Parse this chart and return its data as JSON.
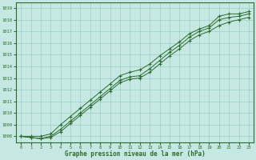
{
  "x": [
    0,
    1,
    2,
    3,
    4,
    5,
    6,
    7,
    8,
    9,
    10,
    11,
    12,
    13,
    14,
    15,
    16,
    17,
    18,
    19,
    20,
    21,
    22,
    23
  ],
  "line_top": [
    1008.0,
    1008.0,
    1008.0,
    1008.2,
    1009.0,
    1009.7,
    1010.4,
    1011.1,
    1011.8,
    1012.5,
    1013.2,
    1013.5,
    1013.7,
    1014.2,
    1014.9,
    1015.5,
    1016.1,
    1016.8,
    1017.2,
    1017.5,
    1018.3,
    1018.5,
    1018.5,
    1018.7
  ],
  "line_mid": [
    1008.0,
    1007.9,
    1007.8,
    1008.0,
    1008.6,
    1009.3,
    1010.0,
    1010.7,
    1011.4,
    1012.1,
    1012.8,
    1013.1,
    1013.2,
    1013.8,
    1014.5,
    1015.2,
    1015.8,
    1016.5,
    1017.0,
    1017.3,
    1018.0,
    1018.2,
    1018.3,
    1018.5
  ],
  "line_bot": [
    1008.0,
    1007.9,
    1007.8,
    1007.9,
    1008.4,
    1009.1,
    1009.8,
    1010.5,
    1011.2,
    1011.9,
    1012.6,
    1012.9,
    1013.0,
    1013.5,
    1014.2,
    1014.9,
    1015.5,
    1016.2,
    1016.7,
    1017.0,
    1017.5,
    1017.8,
    1018.0,
    1018.2
  ],
  "line_color": "#2d6b2d",
  "bg_color": "#c5e8e2",
  "grid_color": "#9ecec8",
  "xlabel": "Graphe pression niveau de la mer (hPa)",
  "ylim_min": 1007.5,
  "ylim_max": 1019.5,
  "xlim_min": -0.5,
  "xlim_max": 23.5,
  "yticks": [
    1008,
    1009,
    1010,
    1011,
    1012,
    1013,
    1014,
    1015,
    1016,
    1017,
    1018,
    1019
  ],
  "xticks": [
    0,
    1,
    2,
    3,
    4,
    5,
    6,
    7,
    8,
    9,
    10,
    11,
    12,
    13,
    14,
    15,
    16,
    17,
    18,
    19,
    20,
    21,
    22,
    23
  ]
}
